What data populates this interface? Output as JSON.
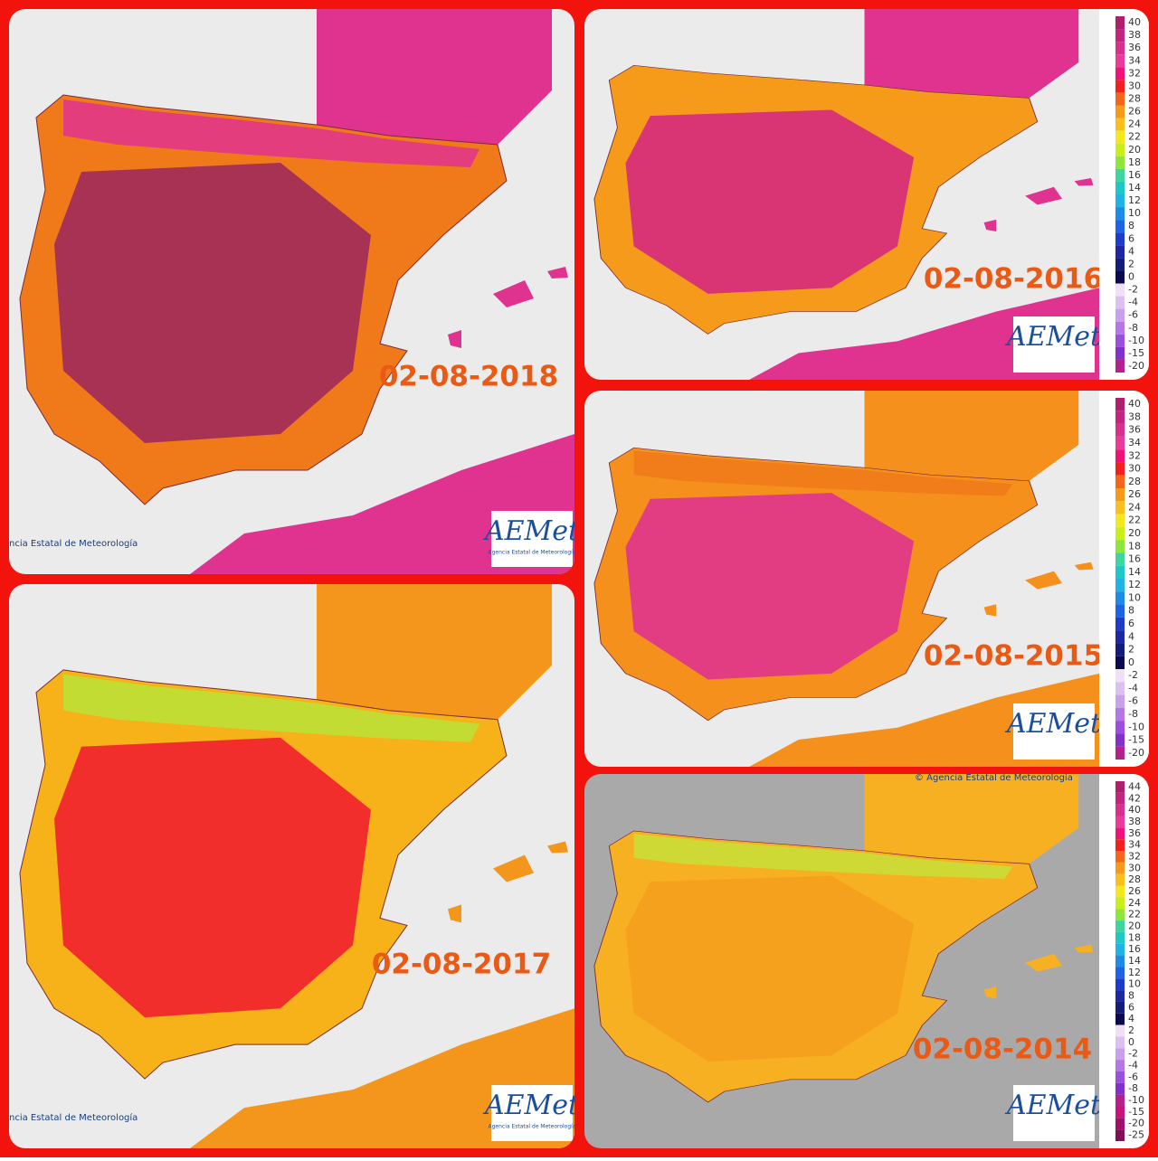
{
  "panels": [
    {
      "date": "02-08-2018",
      "credit": "ncia Estatal de Meteorología",
      "logo": "AEMet",
      "logo_sub": "Agencia Estatal de Meteorología"
    },
    {
      "date": "02-08-2016",
      "logo": "AEMet",
      "legend": [
        40,
        38,
        36,
        34,
        32,
        30,
        28,
        26,
        24,
        22,
        20,
        18,
        16,
        14,
        12,
        10,
        8,
        6,
        4,
        2,
        0,
        -2,
        -4,
        -6,
        -8,
        -10,
        -15,
        -20
      ]
    },
    {
      "date": "02-08-2015",
      "logo": "AEMet",
      "legend": [
        40,
        38,
        36,
        34,
        32,
        30,
        28,
        26,
        24,
        22,
        20,
        18,
        16,
        14,
        12,
        10,
        8,
        6,
        4,
        2,
        0,
        -2,
        -4,
        -6,
        -8,
        -10,
        -15,
        -20
      ]
    },
    {
      "date": "02-08-2017",
      "credit": "ncia Estatal de Meteorología",
      "logo": "AEMet",
      "logo_sub": "Agencia Estatal de Meteorología"
    },
    {
      "date": "02-08-2014",
      "copyright": "© Agencia Estatal de Meteorología",
      "logo": "AEMet",
      "legend": [
        44,
        42,
        40,
        38,
        36,
        34,
        32,
        30,
        28,
        26,
        24,
        22,
        20,
        18,
        16,
        14,
        12,
        10,
        8,
        6,
        4,
        2,
        0,
        -2,
        -4,
        -6,
        -8,
        -10,
        -15,
        -20,
        -25
      ]
    }
  ]
}
